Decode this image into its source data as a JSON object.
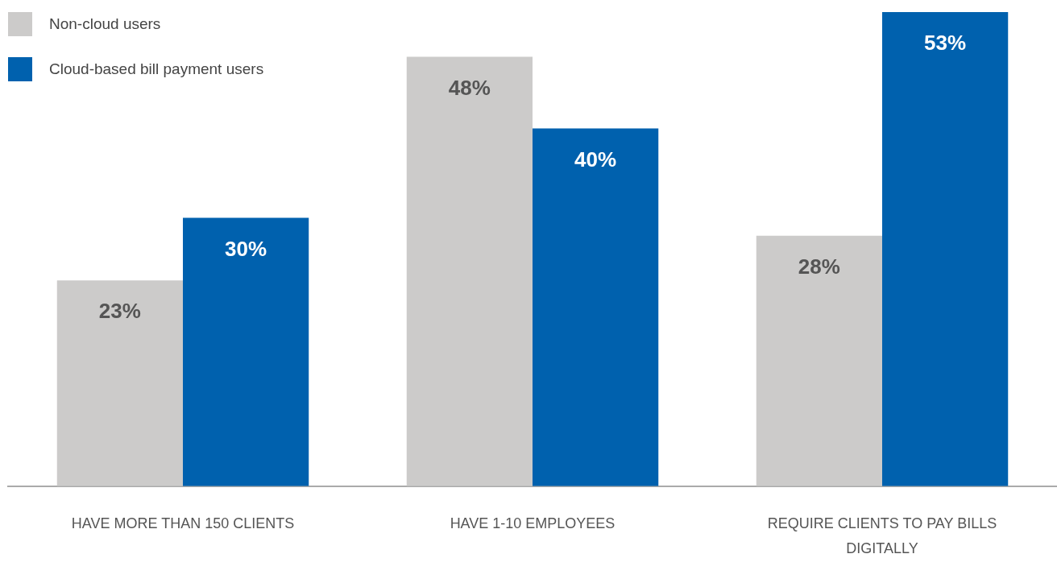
{
  "chart_data": {
    "type": "bar",
    "categories": [
      "HAVE MORE THAN 150 CLIENTS",
      "HAVE 1-10 EMPLOYEES",
      "REQUIRE CLIENTS TO PAY BILLS DIGITALLY"
    ],
    "series": [
      {
        "name": "Non-cloud users",
        "color": "#cccbca",
        "values": [
          23,
          48,
          28
        ],
        "value_labels": [
          "23%",
          "48%",
          "28%"
        ]
      },
      {
        "name": "Cloud-based bill payment users",
        "color": "#0061ae",
        "values": [
          30,
          40,
          53
        ],
        "value_labels": [
          "30%",
          "40%",
          "53%"
        ]
      }
    ],
    "legend": "top left"
  }
}
